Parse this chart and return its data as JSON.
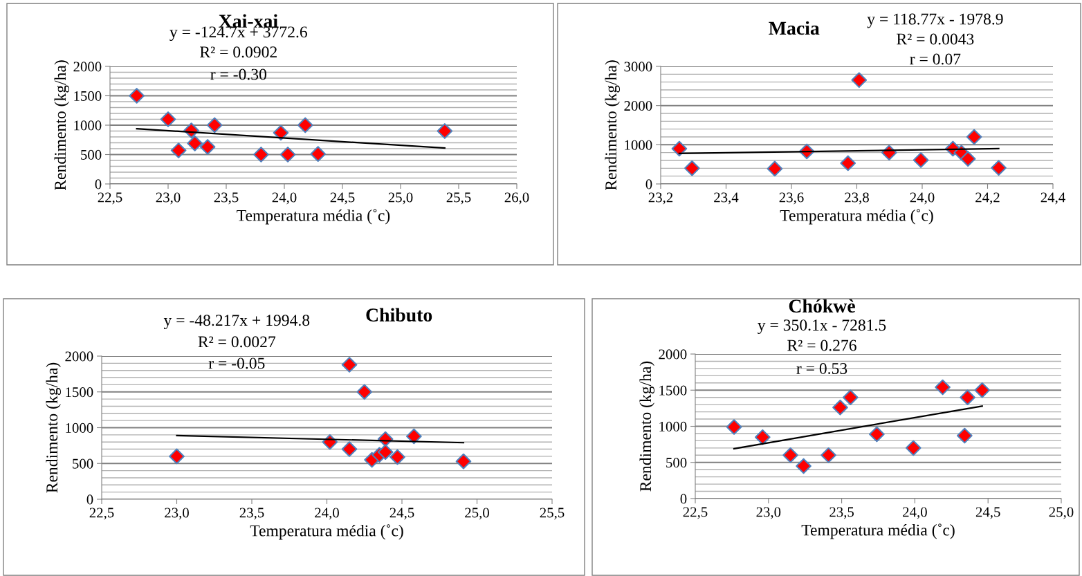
{
  "chart_data": [
    {
      "type": "scatter",
      "title": "Xai-xai",
      "xlabel": "Temperatura média (˚c)",
      "ylabel": "Rendimento (kg/ha)",
      "annotations": [
        "y = -124.7x + 3772.6",
        "R² = 0.0902",
        "r = -0.30"
      ],
      "grid": "y",
      "marker": "diamond",
      "xlim": [
        22.5,
        26.0
      ],
      "xticks": [
        {
          "value": 22.5,
          "label": "22,5"
        },
        {
          "value": 23.0,
          "label": "23,0"
        },
        {
          "value": 23.5,
          "label": "23,5"
        },
        {
          "value": 24.0,
          "label": "24,0"
        },
        {
          "value": 24.5,
          "label": "24,5"
        },
        {
          "value": 25.0,
          "label": "25,0"
        },
        {
          "value": 25.5,
          "label": "25,5"
        },
        {
          "value": 26.0,
          "label": "26,0"
        }
      ],
      "ylim": [
        0,
        2000
      ],
      "yticks": [
        0,
        {
          "value": 100,
          "label": null
        },
        {
          "value": 200,
          "label": null
        },
        {
          "value": 300,
          "label": null
        },
        {
          "value": 400,
          "label": null
        },
        500,
        {
          "value": 600,
          "label": null
        },
        {
          "value": 700,
          "label": null
        },
        {
          "value": 800,
          "label": null
        },
        {
          "value": 900,
          "label": null
        },
        1000,
        {
          "value": 1100,
          "label": null
        },
        {
          "value": 1200,
          "label": null
        },
        {
          "value": 1300,
          "label": null
        },
        {
          "value": 1400,
          "label": null
        },
        1500,
        {
          "value": 1600,
          "label": null
        },
        {
          "value": 1700,
          "label": null
        },
        {
          "value": 1800,
          "label": null
        },
        {
          "value": 1900,
          "label": null
        },
        2000
      ],
      "series": [
        {
          "color": "#ff0000",
          "x": [
            22.73,
            23.0,
            23.09,
            23.2,
            23.23,
            23.34,
            23.4,
            23.8,
            23.97,
            24.03,
            24.18,
            24.29,
            25.38
          ],
          "values": [
            1500,
            1100,
            570,
            910,
            690,
            630,
            1000,
            500,
            870,
            500,
            1000,
            510,
            900
          ]
        },
        {
          "type": "line",
          "color": "#000000",
          "marker": "none",
          "x": [
            22.73,
            25.38
          ],
          "values": [
            940,
            610
          ]
        }
      ]
    },
    {
      "type": "scatter",
      "title": "Macia",
      "xlabel": "Temperatura média (˚c)",
      "ylabel": "Rendimento (kg/ha)",
      "annotations": [
        "y = 118.77x - 1978.9",
        "R² = 0.0043",
        "r = 0.07"
      ],
      "grid": "y",
      "marker": "diamond",
      "xlim": [
        23.2,
        24.4
      ],
      "xticks": [
        {
          "value": 23.2,
          "label": "23,2"
        },
        {
          "value": 23.4,
          "label": "23,4"
        },
        {
          "value": 23.6,
          "label": "23,6"
        },
        {
          "value": 23.8,
          "label": "23,8"
        },
        {
          "value": 24.0,
          "label": "24,0"
        },
        {
          "value": 24.2,
          "label": "24,2"
        },
        {
          "value": 24.4,
          "label": "24,4"
        }
      ],
      "ylim": [
        0,
        3000
      ],
      "yticks": [
        0,
        {
          "value": 200,
          "label": null
        },
        {
          "value": 400,
          "label": null
        },
        {
          "value": 600,
          "label": null
        },
        {
          "value": 800,
          "label": null
        },
        1000,
        {
          "value": 1200,
          "label": null
        },
        {
          "value": 1400,
          "label": null
        },
        {
          "value": 1600,
          "label": null
        },
        {
          "value": 1800,
          "label": null
        },
        2000,
        {
          "value": 2200,
          "label": null
        },
        {
          "value": 2400,
          "label": null
        },
        {
          "value": 2600,
          "label": null
        },
        {
          "value": 2800,
          "label": null
        },
        3000
      ],
      "series": [
        {
          "color": "#ff0000",
          "x": [
            23.257,
            23.296,
            23.549,
            23.647,
            23.773,
            23.807,
            23.899,
            23.996,
            24.094,
            24.12,
            24.14,
            24.159,
            24.234
          ],
          "values": [
            900,
            400,
            390,
            830,
            530,
            2650,
            800,
            610,
            900,
            800,
            640,
            1200,
            410
          ]
        },
        {
          "type": "line",
          "color": "#000000",
          "marker": "none",
          "x": [
            23.257,
            24.234
          ],
          "values": [
            780,
            900
          ]
        }
      ]
    },
    {
      "type": "scatter",
      "title": "Chibuto",
      "xlabel": "Temperatura média (˚c)",
      "ylabel": "Rendimento (kg/ha)",
      "annotations": [
        "y = -48.217x + 1994.8",
        "R² = 0.0027",
        "r = -0.05"
      ],
      "grid": "y",
      "marker": "diamond",
      "xlim": [
        22.5,
        25.5
      ],
      "xticks": [
        {
          "value": 22.5,
          "label": "22,5"
        },
        {
          "value": 23.0,
          "label": "23,0"
        },
        {
          "value": 23.5,
          "label": "23,5"
        },
        {
          "value": 24.0,
          "label": "24,0"
        },
        {
          "value": 24.5,
          "label": "24,5"
        },
        {
          "value": 25.0,
          "label": "25,0"
        },
        {
          "value": 25.5,
          "label": "25,5"
        }
      ],
      "ylim": [
        0,
        2000
      ],
      "yticks": [
        0,
        {
          "value": 100,
          "label": null
        },
        {
          "value": 200,
          "label": null
        },
        {
          "value": 300,
          "label": null
        },
        {
          "value": 400,
          "label": null
        },
        500,
        {
          "value": 600,
          "label": null
        },
        {
          "value": 700,
          "label": null
        },
        {
          "value": 800,
          "label": null
        },
        {
          "value": 900,
          "label": null
        },
        1000,
        {
          "value": 1100,
          "label": null
        },
        {
          "value": 1200,
          "label": null
        },
        {
          "value": 1300,
          "label": null
        },
        {
          "value": 1400,
          "label": null
        },
        1500,
        {
          "value": 1600,
          "label": null
        },
        {
          "value": 1700,
          "label": null
        },
        {
          "value": 1800,
          "label": null
        },
        {
          "value": 1900,
          "label": null
        },
        2000
      ],
      "series": [
        {
          "color": "#ff0000",
          "x": [
            23.0,
            24.02,
            24.15,
            24.25,
            24.15,
            24.3,
            24.35,
            24.39,
            24.39,
            24.47,
            24.58,
            24.91
          ],
          "values": [
            600,
            800,
            1880,
            1500,
            700,
            550,
            620,
            840,
            660,
            590,
            880,
            530
          ]
        },
        {
          "type": "line",
          "color": "#000000",
          "marker": "none",
          "x": [
            23.0,
            24.91
          ],
          "values": [
            890,
            790
          ]
        }
      ]
    },
    {
      "type": "scatter",
      "title": "Chókwè",
      "xlabel": "Temperatura média (˚c)",
      "ylabel": "Rendimento (kg/ha)",
      "annotations": [
        "y = 350.1x - 7281.5",
        "R² = 0.276",
        "r = 0.53"
      ],
      "grid": "y",
      "marker": "diamond",
      "xlim": [
        22.5,
        25.0
      ],
      "xticks": [
        {
          "value": 22.5,
          "label": "22,5"
        },
        {
          "value": 23.0,
          "label": "23,0"
        },
        {
          "value": 23.5,
          "label": "23,5"
        },
        {
          "value": 24.0,
          "label": "24,0"
        },
        {
          "value": 24.5,
          "label": "24,5"
        },
        {
          "value": 25.0,
          "label": "25,0"
        }
      ],
      "ylim": [
        0,
        2000
      ],
      "yticks": [
        0,
        {
          "value": 100,
          "label": null
        },
        {
          "value": 200,
          "label": null
        },
        {
          "value": 300,
          "label": null
        },
        {
          "value": 400,
          "label": null
        },
        500,
        {
          "value": 600,
          "label": null
        },
        {
          "value": 700,
          "label": null
        },
        {
          "value": 800,
          "label": null
        },
        {
          "value": 900,
          "label": null
        },
        1000,
        {
          "value": 1100,
          "label": null
        },
        {
          "value": 1200,
          "label": null
        },
        {
          "value": 1300,
          "label": null
        },
        {
          "value": 1400,
          "label": null
        },
        1500,
        {
          "value": 1600,
          "label": null
        },
        {
          "value": 1700,
          "label": null
        },
        {
          "value": 1800,
          "label": null
        },
        {
          "value": 1900,
          "label": null
        },
        2000
      ],
      "series": [
        {
          "color": "#ff0000",
          "x": [
            22.765,
            22.96,
            23.15,
            23.24,
            23.41,
            23.49,
            23.56,
            23.74,
            23.99,
            24.19,
            24.34,
            24.36,
            24.46
          ],
          "values": [
            990,
            850,
            600,
            450,
            600,
            1260,
            1400,
            890,
            700,
            1540,
            870,
            1400,
            1500
          ]
        },
        {
          "type": "line",
          "color": "#000000",
          "marker": "none",
          "x": [
            22.765,
            24.46
          ],
          "values": [
            690,
            1280
          ]
        }
      ]
    }
  ]
}
